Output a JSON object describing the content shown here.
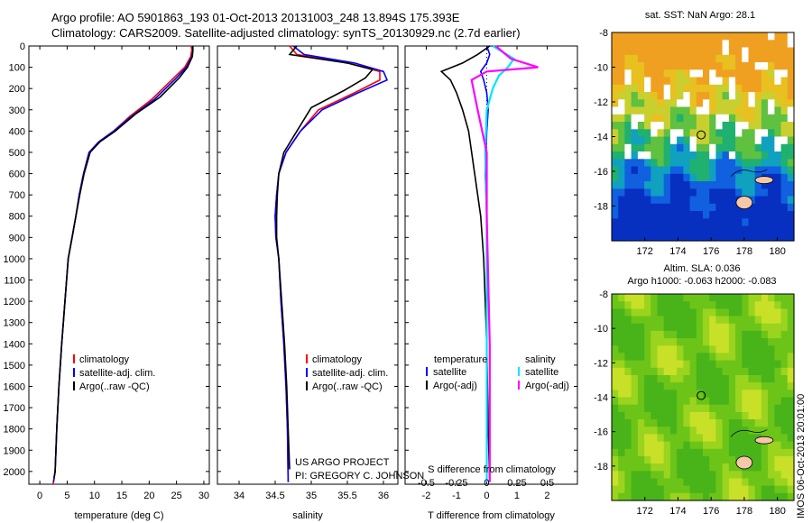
{
  "header": {
    "line1": "Argo profile: AO 5901863_193 01-Oct-2013 20131003_248 13.894S 175.393E",
    "line2": "Climatology: CARS2009. Satellite-adjusted climatology: synTS_20130929.nc (2.7d earlier)"
  },
  "credit": {
    "line1": "US ARGO PROJECT",
    "line2": "PI: GREGORY C. JOHNSON"
  },
  "side_stamp": "IMOS 06-Oct-2013 20:01:00",
  "colors": {
    "climatology": "#ff0000",
    "satellite": "#0000ff",
    "argo": "#000000",
    "salinity_sat": "#00e5ff",
    "salinity_argo": "#ff00ff"
  },
  "chart_data": [
    {
      "type": "line",
      "xlabel": "temperature (deg C)",
      "ylabel": "",
      "xlim": [
        -2,
        31
      ],
      "ylim": [
        2060,
        0
      ],
      "y_inverted": true,
      "xticks": [
        0,
        5,
        10,
        15,
        20,
        25,
        30
      ],
      "yticks": [
        0,
        100,
        200,
        300,
        400,
        500,
        600,
        700,
        800,
        900,
        1000,
        1100,
        1200,
        1300,
        1400,
        1500,
        1600,
        1700,
        1800,
        1900,
        2000
      ],
      "legend": [
        "climatology",
        "satellite-adj. clim.",
        "Argo(..raw -QC)"
      ],
      "series": [
        {
          "name": "climatology",
          "color": "#ff0000",
          "x": [
            27.7,
            27.8,
            27.6,
            26.5,
            24.5,
            20.5,
            16.5,
            13.5,
            10.8,
            9.0,
            8.0,
            7.2,
            6.6,
            5.9,
            5.2,
            4.6,
            4.0,
            3.5,
            3.1,
            2.8,
            2.5,
            2.4
          ],
          "y": [
            0,
            20,
            50,
            100,
            150,
            250,
            330,
            400,
            450,
            500,
            600,
            700,
            800,
            900,
            1000,
            1200,
            1400,
            1600,
            1800,
            2000,
            2050,
            2060
          ]
        },
        {
          "name": "satellite-adj. clim.",
          "color": "#0000ff",
          "x": [
            27.9,
            28.0,
            27.8,
            26.8,
            25.0,
            21.0,
            16.8,
            13.5,
            10.8,
            9.0,
            8.0,
            7.2,
            6.6,
            5.9,
            5.2,
            4.6,
            4.0,
            3.5,
            3.1,
            2.8,
            2.5
          ],
          "y": [
            0,
            20,
            50,
            100,
            150,
            250,
            330,
            400,
            450,
            500,
            600,
            700,
            800,
            900,
            1000,
            1200,
            1400,
            1600,
            1800,
            2000,
            2050
          ]
        },
        {
          "name": "Argo(..raw -QC)",
          "color": "#000000",
          "x": [
            28.0,
            28.0,
            27.9,
            27.0,
            25.5,
            22.0,
            17.5,
            13.8,
            11.0,
            9.2,
            8.1,
            7.3,
            6.6,
            5.9,
            5.2,
            4.6,
            4.0,
            3.5,
            3.1,
            2.8,
            2.6
          ],
          "y": [
            0,
            20,
            50,
            100,
            150,
            240,
            320,
            400,
            450,
            500,
            600,
            700,
            800,
            900,
            1000,
            1200,
            1400,
            1600,
            1800,
            2000,
            2030
          ]
        }
      ]
    },
    {
      "type": "line",
      "xlabel": "salinity",
      "xlim": [
        33.7,
        36.2
      ],
      "ylim": [
        2060,
        0
      ],
      "y_inverted": true,
      "xticks": [
        34,
        34.5,
        35,
        35.5,
        36
      ],
      "legend": [
        "climatology",
        "satellite-adj. clim.",
        "Argo(..raw -QC)"
      ],
      "series": [
        {
          "name": "climatology",
          "color": "#ff0000",
          "x": [
            34.7,
            34.8,
            35.5,
            35.95,
            35.95,
            35.6,
            35.1,
            34.85,
            34.65,
            34.55,
            34.52,
            34.5,
            34.51,
            34.55,
            34.58,
            34.62,
            34.65,
            34.67,
            34.68
          ],
          "y": [
            0,
            40,
            80,
            120,
            160,
            220,
            300,
            400,
            500,
            600,
            700,
            800,
            900,
            1000,
            1200,
            1400,
            1600,
            1800,
            2050
          ]
        },
        {
          "name": "satellite-adj. clim.",
          "color": "#0000ff",
          "x": [
            34.75,
            34.9,
            35.6,
            36.0,
            36.05,
            35.65,
            35.15,
            34.85,
            34.65,
            34.55,
            34.52,
            34.5,
            34.51,
            34.55,
            34.58,
            34.62,
            34.65,
            34.67,
            34.68
          ],
          "y": [
            0,
            40,
            80,
            120,
            160,
            220,
            300,
            400,
            500,
            600,
            700,
            800,
            900,
            1000,
            1200,
            1400,
            1600,
            1800,
            2050
          ]
        },
        {
          "name": "Argo(..raw -QC)",
          "color": "#000000",
          "x": [
            34.8,
            34.7,
            35.5,
            35.85,
            35.75,
            35.45,
            35.0,
            34.8,
            34.62,
            34.55,
            34.53,
            34.52,
            34.52,
            34.55,
            34.59,
            34.63,
            34.66,
            34.68,
            34.7
          ],
          "y": [
            0,
            40,
            80,
            110,
            150,
            210,
            290,
            400,
            500,
            600,
            700,
            800,
            900,
            1000,
            1200,
            1400,
            1600,
            1800,
            1990
          ]
        }
      ]
    },
    {
      "type": "line",
      "xlabel": "T difference from climatology",
      "xlabel2": "S difference from climatology",
      "xlim": [
        -2.7,
        3.0
      ],
      "ylim": [
        2060,
        0
      ],
      "y_inverted": true,
      "xticks": [
        -2,
        -1,
        0,
        1,
        2
      ],
      "xticks_top_labels": [
        "-0.5",
        "-0.25",
        "0",
        "0.25",
        "0.5"
      ],
      "legend_temperature": {
        "title": "temperature",
        "items": [
          "satellite",
          "Argo(-adj)"
        ]
      },
      "legend_salinity": {
        "title": "salinity",
        "items": [
          "satellite",
          "Argo(-adj)"
        ]
      },
      "series": [
        {
          "name": "temperature satellite",
          "color": "#0000ff",
          "x": [
            0.0,
            0.1,
            0.0,
            -0.2,
            -0.1,
            0.0,
            0.05,
            0.0,
            -0.05,
            0.0,
            0.0,
            0.0,
            0.0,
            0.0
          ],
          "y": [
            0,
            40,
            80,
            120,
            160,
            220,
            300,
            400,
            600,
            800,
            1000,
            1400,
            1800,
            2050
          ]
        },
        {
          "name": "temperature Argo(-adj)",
          "color": "#000000",
          "x": [
            0.1,
            -0.3,
            -0.8,
            -1.5,
            -1.2,
            -1.0,
            -0.8,
            -0.6,
            -0.4,
            -0.2,
            -0.1,
            0.0,
            0.05,
            0.1
          ],
          "y": [
            0,
            40,
            80,
            120,
            160,
            220,
            300,
            400,
            600,
            800,
            1000,
            1400,
            1800,
            2050
          ]
        },
        {
          "name": "salinity satellite",
          "color": "#00e5ff",
          "x": [
            0.2,
            0.9,
            0.7,
            0.4,
            0.2,
            0.0,
            -0.05,
            0.0,
            0.0,
            0.0
          ],
          "y": [
            0,
            60,
            100,
            140,
            200,
            300,
            500,
            800,
            1400,
            2050
          ]
        },
        {
          "name": "salinity Argo(-adj)",
          "color": "#ff00ff",
          "x": [
            0.3,
            0.8,
            1.7,
            0.0,
            -0.5,
            -0.3,
            0.0,
            0.0,
            0.1,
            0.1
          ],
          "y": [
            0,
            60,
            100,
            120,
            160,
            300,
            500,
            800,
            1400,
            2050
          ]
        }
      ]
    },
    {
      "type": "heatmap",
      "title": "sat. SST: NaN Argo: 28.1",
      "xlim": [
        170,
        181
      ],
      "ylim": [
        -20,
        -8
      ],
      "xticks": [
        172,
        174,
        176,
        178,
        180
      ],
      "yticks": [
        -8,
        -10,
        -12,
        -14,
        -16,
        -18
      ],
      "marker": {
        "x": 175.4,
        "y": -13.9
      }
    },
    {
      "type": "heatmap",
      "title": "Altim. SLA: 0.036",
      "subtitle": "Argo h1000: -0.063 h2000: -0.083",
      "xlim": [
        170,
        181
      ],
      "ylim": [
        -20,
        -8
      ],
      "xticks": [
        172,
        174,
        176,
        178,
        180
      ],
      "yticks": [
        -8,
        -10,
        -12,
        -14,
        -16,
        -18
      ],
      "marker": {
        "x": 175.4,
        "y": -13.9
      }
    }
  ]
}
